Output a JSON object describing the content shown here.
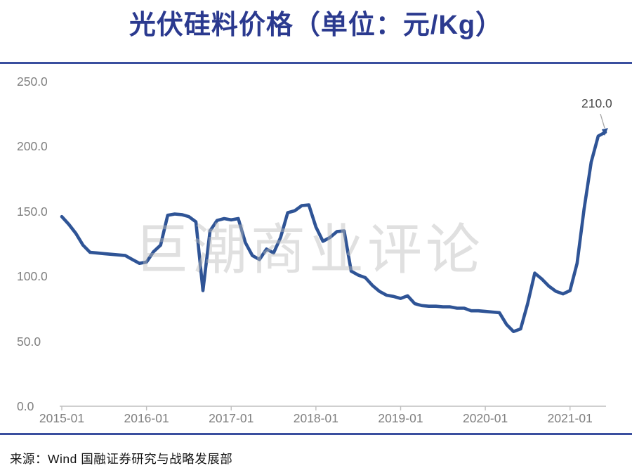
{
  "page": {
    "title": "光伏硅料价格（单位：元/Kg）",
    "watermark": "巨潮商业评论",
    "source_note": "来源：Wind  国融证券研究与战略发展部"
  },
  "colors": {
    "title_blue": "#2b3a8f",
    "separator_blue": "#3a4f9f",
    "line_blue": "#2f5496",
    "axis_text_gray": "#7f7f7f",
    "axis_line_gray": "#bfbfbf",
    "annotation_gray": "#4a4a4a",
    "watermark_gray": "#bababa",
    "background": "#ffffff"
  },
  "chart_data": {
    "type": "line",
    "title": "光伏硅料价格（单位：元/Kg）",
    "ylabel": "",
    "xlabel": "",
    "unit": "元/Kg",
    "ylim": [
      0,
      250
    ],
    "grid": false,
    "legend": "none",
    "y_ticks": [
      0,
      50,
      100,
      150,
      200,
      250
    ],
    "y_tick_labels": [
      "0.0",
      "50.0",
      "100.0",
      "150.0",
      "200.0",
      "250.0"
    ],
    "x_tick_labels": [
      "2015-01",
      "2016-01",
      "2017-01",
      "2018-01",
      "2019-01",
      "2020-01",
      "2021-01"
    ],
    "x": [
      "2015-01",
      "2015-02",
      "2015-03",
      "2015-04",
      "2015-05",
      "2015-06",
      "2015-07",
      "2015-08",
      "2015-09",
      "2015-10",
      "2015-11",
      "2015-12",
      "2016-01",
      "2016-02",
      "2016-03",
      "2016-04",
      "2016-05",
      "2016-06",
      "2016-07",
      "2016-08",
      "2016-09",
      "2016-10",
      "2016-11",
      "2016-12",
      "2017-01",
      "2017-02",
      "2017-03",
      "2017-04",
      "2017-05",
      "2017-06",
      "2017-07",
      "2017-08",
      "2017-09",
      "2017-10",
      "2017-11",
      "2017-12",
      "2018-01",
      "2018-02",
      "2018-03",
      "2018-04",
      "2018-05",
      "2018-06",
      "2018-07",
      "2018-08",
      "2018-09",
      "2018-10",
      "2018-11",
      "2018-12",
      "2019-01",
      "2019-02",
      "2019-03",
      "2019-04",
      "2019-05",
      "2019-06",
      "2019-07",
      "2019-08",
      "2019-09",
      "2019-10",
      "2019-11",
      "2019-12",
      "2020-01",
      "2020-02",
      "2020-03",
      "2020-04",
      "2020-05",
      "2020-06",
      "2020-07",
      "2020-08",
      "2020-09",
      "2020-10",
      "2020-11",
      "2020-12",
      "2021-01",
      "2021-02",
      "2021-03",
      "2021-04",
      "2021-05",
      "2021-06"
    ],
    "values": [
      146,
      140,
      133,
      124,
      118.5,
      118,
      117.5,
      117,
      116.5,
      116,
      113,
      110,
      111,
      119,
      124,
      147,
      148,
      147.5,
      146,
      142,
      89,
      135,
      143,
      144.5,
      143.5,
      144.5,
      126,
      116,
      113,
      121,
      118,
      130,
      149,
      150.5,
      154.5,
      155,
      138,
      127,
      130,
      134.5,
      135,
      104,
      101,
      99,
      93,
      88.5,
      85.5,
      84.5,
      83,
      85,
      79,
      77.5,
      77,
      77,
      76.5,
      76.5,
      75.5,
      75.5,
      73.5,
      73.5,
      73,
      72.5,
      72,
      63,
      57.5,
      59.5,
      79,
      102.5,
      98,
      92.5,
      88.5,
      86.5,
      89,
      110,
      152,
      188,
      208,
      211
    ],
    "annotation": {
      "text": "210.0",
      "x": "2021-06",
      "y": 210
    }
  }
}
